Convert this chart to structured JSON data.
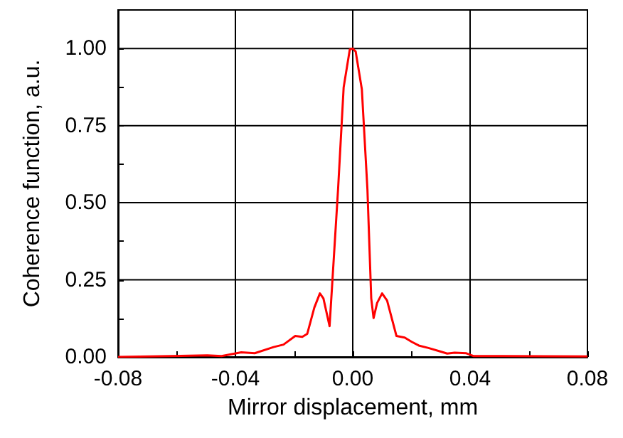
{
  "chart_data": {
    "type": "line",
    "xlabel": "Mirror displacement, mm",
    "ylabel": "Coherence function, a.u.",
    "xlim": [
      -0.08,
      0.08
    ],
    "xticks": [
      {
        "value": -0.08,
        "label": "-0.08"
      },
      {
        "value": -0.06,
        "label": null
      },
      {
        "value": -0.04,
        "label": "-0.04"
      },
      {
        "value": -0.02,
        "label": null
      },
      {
        "value": 0,
        "label": "0.00"
      },
      {
        "value": 0.02,
        "label": null
      },
      {
        "value": 0.04,
        "label": "0.04"
      },
      {
        "value": 0.06,
        "label": null
      },
      {
        "value": 0.08,
        "label": "0.08"
      }
    ],
    "ylim": [
      0,
      1.125
    ],
    "yticks": [
      {
        "value": 0,
        "label": "0.00"
      },
      {
        "value": 0.125,
        "label": null
      },
      {
        "value": 0.25,
        "label": "0.25"
      },
      {
        "value": 0.375,
        "label": null
      },
      {
        "value": 0.5,
        "label": "0.50"
      },
      {
        "value": 0.625,
        "label": null
      },
      {
        "value": 0.75,
        "label": "0.75"
      },
      {
        "value": 0.875,
        "label": null
      },
      {
        "value": 1,
        "label": "1.00"
      }
    ],
    "grid": true,
    "marker": "none",
    "line_style": "solid",
    "x": [
      -0.08,
      -0.0496,
      -0.0447,
      -0.038,
      -0.0334,
      -0.027,
      -0.0236,
      -0.0196,
      -0.0172,
      -0.0155,
      -0.0131,
      -0.0112,
      -0.01,
      -0.0079,
      -0.007,
      -0.005,
      -0.0031,
      -0.001,
      0,
      0.001,
      0.0031,
      0.005,
      0.0063,
      0.0071,
      0.0083,
      0.01,
      0.0117,
      0.0149,
      0.0177,
      0.0201,
      0.0225,
      0.0258,
      0.0298,
      0.0322,
      0.0347,
      0.0387,
      0.0411,
      0.0509,
      0.08
    ],
    "series": [
      {
        "color": "#ff0000",
        "values": [
          0,
          0.005,
          0.003,
          0.015,
          0.012,
          0.032,
          0.04,
          0.068,
          0.065,
          0.075,
          0.16,
          0.206,
          0.19,
          0.1,
          0.237,
          0.544,
          0.874,
          0.997,
          1.0,
          0.99,
          0.868,
          0.544,
          0.19,
          0.126,
          0.175,
          0.206,
          0.183,
          0.068,
          0.063,
          0.049,
          0.037,
          0.029,
          0.018,
          0.011,
          0.014,
          0.012,
          0.003,
          0.003,
          0.002
        ]
      }
    ]
  }
}
